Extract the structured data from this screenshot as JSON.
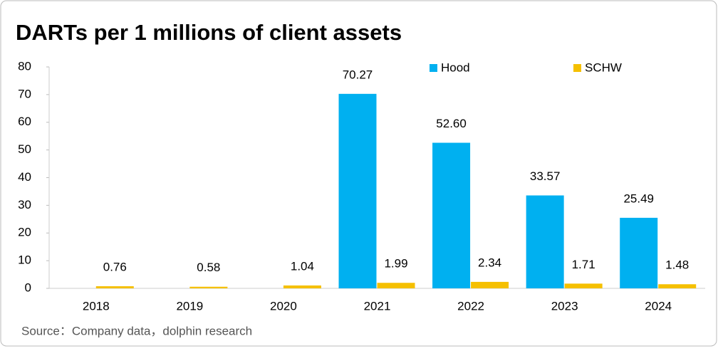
{
  "chart_data": {
    "type": "bar",
    "title": "DARTs per 1 millions of client assets",
    "source": "Source：Company data，dolphin research",
    "categories": [
      "2018",
      "2019",
      "2020",
      "2021",
      "2022",
      "2023",
      "2024"
    ],
    "series": [
      {
        "name": "Hood",
        "color": "#00b0f0",
        "values": [
          null,
          null,
          null,
          70.27,
          52.6,
          33.57,
          25.49
        ],
        "value_labels": [
          null,
          null,
          null,
          "70.27",
          "52.60",
          "33.57",
          "25.49"
        ]
      },
      {
        "name": "SCHW",
        "color": "#f5c000",
        "values": [
          0.76,
          0.58,
          1.04,
          1.99,
          2.34,
          1.71,
          1.48
        ]
      }
    ],
    "ylim": [
      0,
      80
    ],
    "yticks": [
      0,
      10,
      20,
      30,
      40,
      50,
      60,
      70,
      80
    ]
  }
}
